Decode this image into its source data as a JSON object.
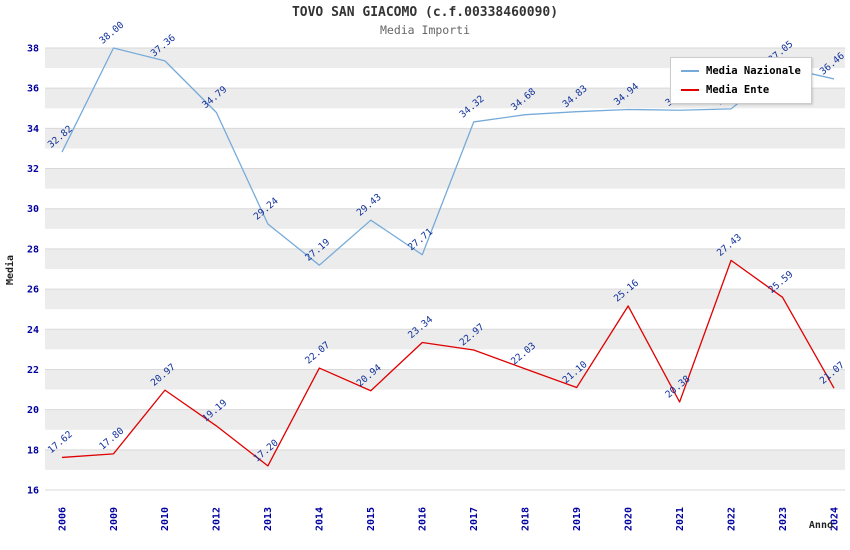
{
  "chart_data": {
    "type": "line",
    "title": "TOVO SAN GIACOMO (c.f.00338460090)",
    "subtitle": "Media Importi",
    "xlabel": "Anno",
    "ylabel": "Media",
    "ylim": [
      16,
      38
    ],
    "ytick_step": 2,
    "grid": true,
    "legend_position": "top-right",
    "categories": [
      "2006",
      "2009",
      "2010",
      "2012",
      "2013",
      "2014",
      "2015",
      "2016",
      "2017",
      "2018",
      "2019",
      "2020",
      "2021",
      "2022",
      "2023",
      "2024"
    ],
    "series": [
      {
        "name": "Media Nazionale",
        "color": "#76abd9",
        "values": [
          32.82,
          38.0,
          37.36,
          34.79,
          29.24,
          27.19,
          29.43,
          27.71,
          34.32,
          34.68,
          34.83,
          34.94,
          34.9,
          34.97,
          37.05,
          36.46
        ]
      },
      {
        "name": "Media Ente",
        "color": "#e00000",
        "values": [
          17.62,
          17.8,
          20.97,
          19.19,
          17.2,
          22.07,
          20.94,
          23.34,
          22.97,
          22.03,
          21.1,
          25.16,
          20.38,
          27.43,
          25.59,
          21.07
        ]
      }
    ],
    "style": {
      "band_color": "#ececec",
      "grid_color": "#d9d9d9",
      "tick_color": "#0000a0",
      "point_label_color": "#10309a",
      "plot_background": "#ffffff"
    }
  }
}
